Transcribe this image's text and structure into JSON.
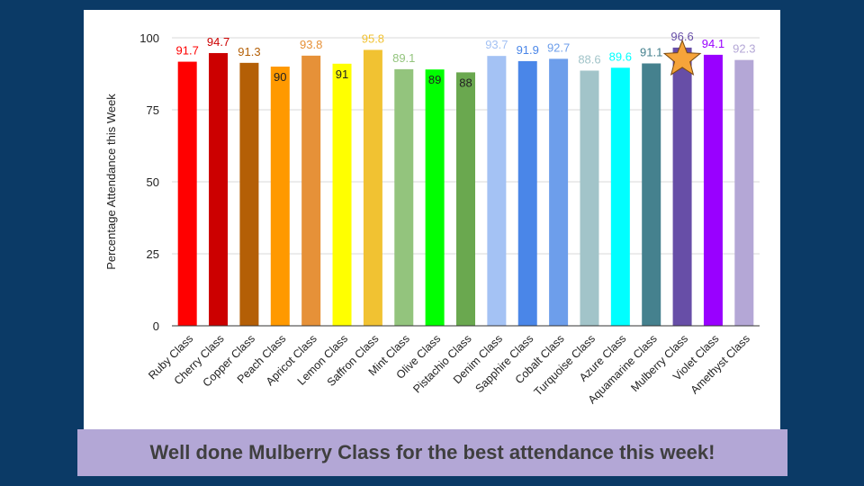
{
  "chart_data": {
    "type": "bar",
    "title": "",
    "xlabel": "",
    "ylabel": "Percentage Attendance this Week",
    "ylim": [
      0,
      100
    ],
    "yticks": [
      0,
      25,
      50,
      75,
      100
    ],
    "grid": true,
    "categories": [
      "Ruby Class",
      "Cherry Class",
      "Copper Class",
      "Peach Class",
      "Apricot Class",
      "Lemon Class",
      "Saffron Class",
      "Mint Class",
      "Olive Class",
      "Pistachio Class",
      "Denim Class",
      "Sapphire Class",
      "Cobalt Class",
      "Turquoise Class",
      "Azure Class",
      "Aquamarine Class",
      "Mulberry Class",
      "Violet Class",
      "Amethyst Class"
    ],
    "values": [
      91.7,
      94.7,
      91.3,
      90,
      93.8,
      91,
      95.8,
      89.1,
      89,
      88,
      93.7,
      91.9,
      92.7,
      88.6,
      89.6,
      91.1,
      96.6,
      94.1,
      92.3
    ],
    "colors": [
      "#ff0000",
      "#cc0000",
      "#b45f06",
      "#ff9900",
      "#e69138",
      "#ffff00",
      "#f1c232",
      "#93c47d",
      "#00ff00",
      "#6aa84f",
      "#a4c2f4",
      "#4a86e8",
      "#6d9eeb",
      "#a2c4c9",
      "#00ffff",
      "#45818e",
      "#674ea7",
      "#9900ff",
      "#b4a7d6"
    ],
    "label_colors": [
      "#ff0000",
      "#cc0000",
      "#b45f06",
      "#222222",
      "#e69138",
      "#222222",
      "#f1c232",
      "#93c47d",
      "#222222",
      "#222222",
      "#a4c2f4",
      "#4a86e8",
      "#6d9eeb",
      "#a2c4c9",
      "#00ffff",
      "#45818e",
      "#674ea7",
      "#9900ff",
      "#b4a7d6"
    ],
    "label_inside": [
      false,
      false,
      false,
      true,
      false,
      true,
      false,
      false,
      true,
      true,
      false,
      false,
      false,
      false,
      false,
      false,
      false,
      false,
      false
    ],
    "highlight": {
      "category": "Mulberry Class",
      "marker": "star",
      "color": "#f6a43a"
    }
  },
  "banner": {
    "text": "Well done Mulberry Class for the best attendance this week!"
  }
}
